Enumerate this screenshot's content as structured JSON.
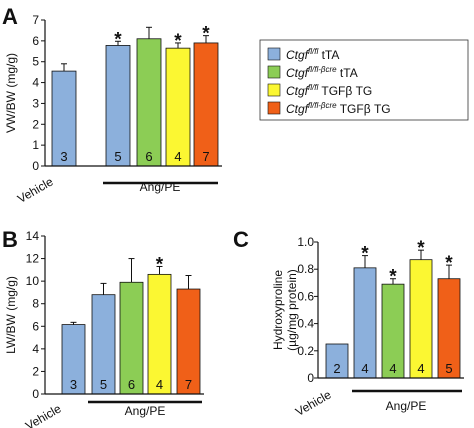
{
  "colors": {
    "blue": "#8cb0dc",
    "green": "#8ccd55",
    "yellow": "#fbf732",
    "orange": "#f06018"
  },
  "legend": {
    "items": [
      {
        "base": "Ctgf",
        "sup": "fl/fl",
        "suffix": " tTA",
        "color": "#8cb0dc"
      },
      {
        "base": "Ctgf",
        "sup": "fl/fl-βcre",
        "suffix": " tTA",
        "color": "#8ccd55"
      },
      {
        "base": "Ctgf",
        "sup": "fl/fl",
        "suffix": " TGFβ TG",
        "color": "#fbf732"
      },
      {
        "base": "Ctgf",
        "sup": "fl/fl-βcre",
        "suffix": " TGFβ TG",
        "color": "#f06018"
      }
    ]
  },
  "chart_data": [
    {
      "panel": "A",
      "type": "bar",
      "ylabel": "VW/BW (mg/g)",
      "ylim": [
        0,
        7
      ],
      "yticks": [
        0,
        1,
        2,
        3,
        4,
        5,
        6,
        7
      ],
      "vehicle_label": "Vehicle",
      "group_label": "Ang/PE",
      "values": [
        4.55,
        5.78,
        6.1,
        5.65,
        5.9
      ],
      "errors": [
        0.35,
        0.2,
        0.55,
        0.25,
        0.35
      ],
      "n": [
        "3",
        "5",
        "6",
        "4",
        "7"
      ],
      "significant": [
        false,
        true,
        false,
        true,
        true
      ],
      "star": "*"
    },
    {
      "panel": "B",
      "type": "bar",
      "ylabel": "LW/BW (mg/g)",
      "ylim": [
        0,
        14
      ],
      "yticks": [
        0,
        2,
        4,
        6,
        8,
        10,
        12,
        14
      ],
      "vehicle_label": "Vehicle",
      "group_label": "Ang/PE",
      "values": [
        6.15,
        8.8,
        9.9,
        10.6,
        9.3
      ],
      "errors": [
        0.2,
        1.0,
        2.1,
        0.7,
        1.2
      ],
      "n": [
        "3",
        "5",
        "6",
        "4",
        "7"
      ],
      "significant": [
        false,
        false,
        false,
        true,
        false
      ],
      "star": "*"
    },
    {
      "panel": "C",
      "type": "bar",
      "ylabel_line1": "Hydroxyproline",
      "ylabel_line2": "(µg/mg protein)",
      "ylim": [
        0,
        1.0
      ],
      "yticks": [
        0,
        0.2,
        0.4,
        0.6,
        0.8,
        1.0
      ],
      "ytick_labels": [
        "0",
        "0.2",
        "0.4",
        "0.6",
        "0.8",
        "1.0"
      ],
      "vehicle_label": "Vehicle",
      "group_label": "Ang/PE",
      "values": [
        0.25,
        0.81,
        0.69,
        0.87,
        0.73
      ],
      "errors": [
        0,
        0.09,
        0.04,
        0.07,
        0.1
      ],
      "n": [
        "2",
        "4",
        "4",
        "4",
        "5"
      ],
      "significant": [
        false,
        true,
        true,
        true,
        true
      ],
      "star": "*"
    }
  ]
}
